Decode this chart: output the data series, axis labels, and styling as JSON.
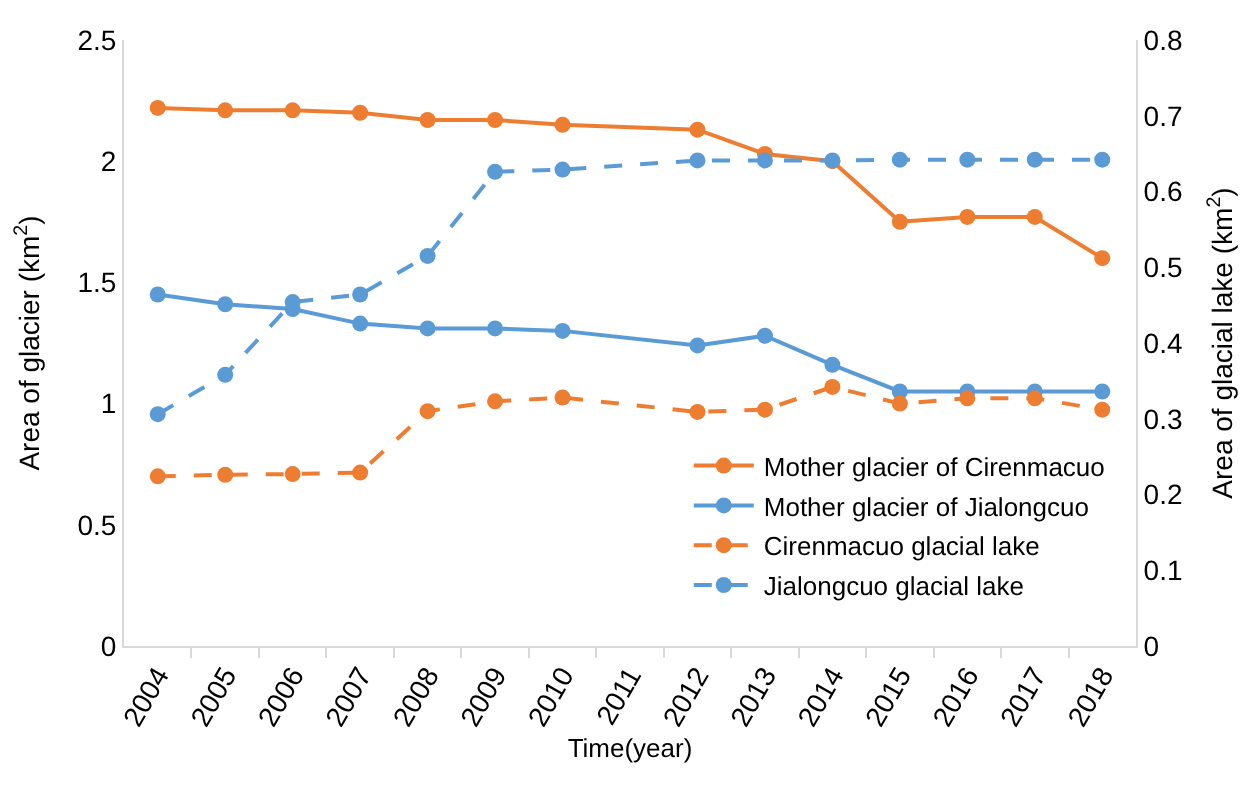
{
  "chart_data": {
    "type": "line",
    "xlabel": "Time(year)",
    "ylabel": "Area of glacier (km$^{2}$)",
    "y2label": "Area of glacial lake (km$^{2}$)",
    "categories": [
      "2004",
      "2005",
      "2006",
      "2007",
      "2008",
      "2009",
      "2010",
      "2011",
      "2012",
      "2013",
      "2014",
      "2015",
      "2016",
      "2017",
      "2018"
    ],
    "series": [
      {
        "name": "Mother glacier of Cirenmacuo",
        "color": "#ed7d31",
        "line_style": "solid",
        "values": [
          2.22,
          2.21,
          2.21,
          2.2,
          2.17,
          2.17,
          2.15,
          null,
          2.13,
          2.03,
          2.0,
          1.75,
          1.77,
          1.77,
          1.6
        ]
      },
      {
        "name": "Mother glacier of Jialongcuo",
        "color": "#5b9bd5",
        "line_style": "solid",
        "values": [
          1.45,
          1.41,
          1.39,
          1.33,
          1.31,
          1.31,
          1.3,
          null,
          1.24,
          1.28,
          1.16,
          1.05,
          1.05,
          1.05,
          1.05
        ]
      },
      {
        "name": "Cirenmacuo glacial lake",
        "color": "#ed7d31",
        "line_style": "dashed",
        "axis": "y2",
        "values": [
          0.224,
          0.226,
          0.227,
          0.229,
          0.31,
          0.323,
          0.328,
          null,
          0.309,
          0.312,
          0.342,
          0.32,
          0.327,
          0.327,
          0.312
        ]
      },
      {
        "name": "Jialongcuo glacial lake",
        "color": "#5b9bd5",
        "line_style": "dashed",
        "axis": "y2",
        "values": [
          0.306,
          0.358,
          0.454,
          0.464,
          0.515,
          0.626,
          0.629,
          null,
          0.641,
          0.641,
          0.641,
          0.642,
          0.642,
          0.642,
          0.642
        ]
      }
    ],
    "ylim": [
      0,
      2.5
    ],
    "yticks": [
      0,
      0.5,
      1,
      1.5,
      2,
      2.5
    ],
    "y2lim": [
      0,
      0.8
    ],
    "y2ticks": [
      0,
      0.1,
      0.2,
      0.3,
      0.4,
      0.5,
      0.6,
      0.7,
      0.8
    ],
    "legend": "bottom right",
    "marker": "circle"
  }
}
